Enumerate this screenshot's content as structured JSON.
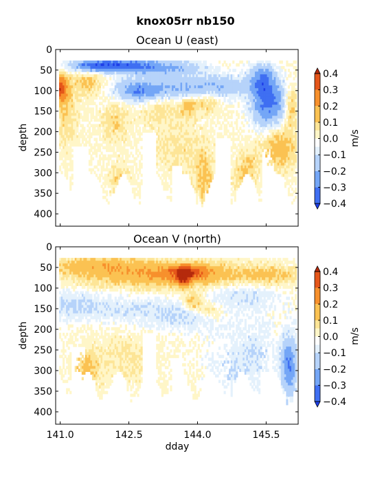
{
  "figure": {
    "title": "knox05rr nb150"
  },
  "colors": {
    "levels": [
      "#1f3fe8",
      "#3f6ff2",
      "#74a6f6",
      "#b6d3fa",
      "#e4f1fc",
      "#ffffff",
      "#fff6c8",
      "#fde597",
      "#fbc252",
      "#f7902c",
      "#e5561a",
      "#b52a0c"
    ],
    "band_edges": [
      -0.4,
      -0.3,
      -0.2,
      -0.1,
      -0.05,
      0,
      0.05,
      0.1,
      0.2,
      0.3,
      0.4
    ]
  },
  "chart_data": [
    {
      "type": "heatmap",
      "title": "Ocean U (east)",
      "xlabel": "",
      "ylabel": "depth",
      "xlim": [
        140.9,
        146.2
      ],
      "ylim": [
        430,
        0
      ],
      "xticks": [
        141.0,
        142.5,
        144.0,
        145.5
      ],
      "xticklabels": [
        "",
        "",
        "",
        ""
      ],
      "yticks": [
        0,
        50,
        100,
        150,
        200,
        250,
        300,
        350,
        400
      ],
      "yticklabels": [
        "0",
        "50",
        "100",
        "150",
        "200",
        "250",
        "300",
        "350",
        "400"
      ],
      "colorbar": {
        "label": "m/s",
        "ticks": [
          0.4,
          0.3,
          0.2,
          0.1,
          0.0,
          -0.1,
          -0.2,
          -0.3,
          -0.4
        ],
        "ticklabels": [
          "0.4",
          "0.3",
          "0.2",
          "0.1",
          "0.0",
          "−0.1",
          "−0.2",
          "−0.3",
          "−0.4"
        ],
        "range": [
          -0.4,
          0.4
        ]
      },
      "features": [
        {
          "t": 141.6,
          "z": 40,
          "st": 0.35,
          "sz": 10,
          "v": -0.22
        },
        {
          "t": 142.3,
          "z": 38,
          "st": 0.5,
          "sz": 12,
          "v": -0.32
        },
        {
          "t": 143.3,
          "z": 45,
          "st": 0.6,
          "sz": 14,
          "v": -0.2
        },
        {
          "t": 142.7,
          "z": 100,
          "st": 0.35,
          "sz": 18,
          "v": -0.25
        },
        {
          "t": 143.6,
          "z": 95,
          "st": 0.6,
          "sz": 20,
          "v": -0.18
        },
        {
          "t": 144.6,
          "z": 90,
          "st": 0.5,
          "sz": 20,
          "v": -0.14
        },
        {
          "t": 145.55,
          "z": 130,
          "st": 0.25,
          "sz": 40,
          "v": -0.34
        },
        {
          "t": 145.4,
          "z": 70,
          "st": 0.2,
          "sz": 25,
          "v": -0.22
        },
        {
          "t": 141.0,
          "z": 95,
          "st": 0.12,
          "sz": 22,
          "v": 0.33
        },
        {
          "t": 141.1,
          "z": 150,
          "st": 0.2,
          "sz": 60,
          "v": 0.09
        },
        {
          "t": 141.6,
          "z": 80,
          "st": 0.2,
          "sz": 20,
          "v": 0.13
        },
        {
          "t": 142.2,
          "z": 175,
          "st": 0.2,
          "sz": 35,
          "v": 0.09
        },
        {
          "t": 143.2,
          "z": 140,
          "st": 0.3,
          "sz": 30,
          "v": 0.07
        },
        {
          "t": 143.8,
          "z": 135,
          "st": 0.12,
          "sz": 18,
          "v": 0.15
        },
        {
          "t": 144.2,
          "z": 125,
          "st": 0.2,
          "sz": 20,
          "v": 0.12
        },
        {
          "t": 145.8,
          "z": 240,
          "st": 0.25,
          "sz": 35,
          "v": 0.16
        },
        {
          "t": 146.05,
          "z": 140,
          "st": 0.1,
          "sz": 35,
          "v": 0.14
        },
        {
          "t": 142.3,
          "z": 320,
          "st": 0.15,
          "sz": 30,
          "v": 0.1
        },
        {
          "t": 143.6,
          "z": 240,
          "st": 0.4,
          "sz": 45,
          "v": 0.07
        },
        {
          "t": 144.15,
          "z": 315,
          "st": 0.15,
          "sz": 45,
          "v": 0.12
        },
        {
          "t": 145.0,
          "z": 320,
          "st": 0.15,
          "sz": 40,
          "v": 0.09
        },
        {
          "t": 145.15,
          "z": 280,
          "st": 0.15,
          "sz": 35,
          "v": 0.06
        }
      ],
      "dry_windows": [
        {
          "t": 141.45,
          "st": 0.18,
          "z": 235
        },
        {
          "t": 142.95,
          "st": 0.15,
          "z": 200
        },
        {
          "t": 143.55,
          "st": 0.12,
          "z": 280
        },
        {
          "t": 144.55,
          "st": 0.16,
          "z": 215
        },
        {
          "t": 145.55,
          "st": 0.15,
          "z": 240
        }
      ],
      "valid_top": 28,
      "valid_bottom": [
        300,
        390
      ],
      "noise": 0.035
    },
    {
      "type": "heatmap",
      "title": "Ocean V (north)",
      "xlabel": "dday",
      "ylabel": "depth",
      "xlim": [
        140.9,
        146.2
      ],
      "ylim": [
        430,
        0
      ],
      "xticks": [
        141.0,
        142.5,
        144.0,
        145.5
      ],
      "xticklabels": [
        "141.0",
        "142.5",
        "144.0",
        "145.5"
      ],
      "yticks": [
        0,
        50,
        100,
        150,
        200,
        250,
        300,
        350,
        400
      ],
      "yticklabels": [
        "0",
        "50",
        "100",
        "150",
        "200",
        "250",
        "300",
        "350",
        "400"
      ],
      "colorbar": {
        "label": "m/s",
        "ticks": [
          0.4,
          0.3,
          0.2,
          0.1,
          0.0,
          -0.1,
          -0.2,
          -0.3,
          -0.4
        ],
        "ticklabels": [
          "0.4",
          "0.3",
          "0.2",
          "0.1",
          "0.0",
          "−0.1",
          "−0.2",
          "−0.3",
          "−0.4"
        ],
        "range": [
          -0.4,
          0.4
        ]
      },
      "features": [
        {
          "t": 143.4,
          "z": 70,
          "st": 1.3,
          "sz": 22,
          "v": 0.19
        },
        {
          "t": 143.8,
          "z": 60,
          "st": 0.35,
          "sz": 12,
          "v": 0.22
        },
        {
          "t": 143.7,
          "z": 75,
          "st": 0.1,
          "sz": 15,
          "v": 0.28
        },
        {
          "t": 141.8,
          "z": 45,
          "st": 0.8,
          "sz": 15,
          "v": 0.13
        },
        {
          "t": 145.6,
          "z": 70,
          "st": 0.5,
          "sz": 15,
          "v": 0.1
        },
        {
          "t": 141.2,
          "z": 140,
          "st": 0.5,
          "sz": 25,
          "v": -0.1
        },
        {
          "t": 142.5,
          "z": 150,
          "st": 0.8,
          "sz": 25,
          "v": -0.08
        },
        {
          "t": 143.8,
          "z": 170,
          "st": 0.6,
          "sz": 25,
          "v": -0.09
        },
        {
          "t": 145.0,
          "z": 115,
          "st": 0.6,
          "sz": 25,
          "v": -0.1
        },
        {
          "t": 143.9,
          "z": 135,
          "st": 0.15,
          "sz": 15,
          "v": 0.17
        },
        {
          "t": 144.3,
          "z": 155,
          "st": 0.2,
          "sz": 15,
          "v": 0.12
        },
        {
          "t": 141.6,
          "z": 290,
          "st": 0.2,
          "sz": 30,
          "v": 0.13
        },
        {
          "t": 142.5,
          "z": 270,
          "st": 0.4,
          "sz": 40,
          "v": 0.06
        },
        {
          "t": 146.0,
          "z": 290,
          "st": 0.12,
          "sz": 55,
          "v": -0.3
        },
        {
          "t": 145.3,
          "z": 260,
          "st": 0.3,
          "sz": 60,
          "v": -0.09
        },
        {
          "t": 144.6,
          "z": 300,
          "st": 0.3,
          "sz": 60,
          "v": -0.08
        }
      ],
      "dry_windows": [
        {
          "t": 141.4,
          "st": 0.15,
          "z": 245
        },
        {
          "t": 142.95,
          "st": 0.15,
          "z": 205
        },
        {
          "t": 143.55,
          "st": 0.12,
          "z": 270
        },
        {
          "t": 144.55,
          "st": 0.16,
          "z": 225
        },
        {
          "t": 145.5,
          "st": 0.15,
          "z": 240
        }
      ],
      "valid_top": 28,
      "valid_bottom": [
        300,
        390
      ],
      "noise": 0.035
    }
  ]
}
